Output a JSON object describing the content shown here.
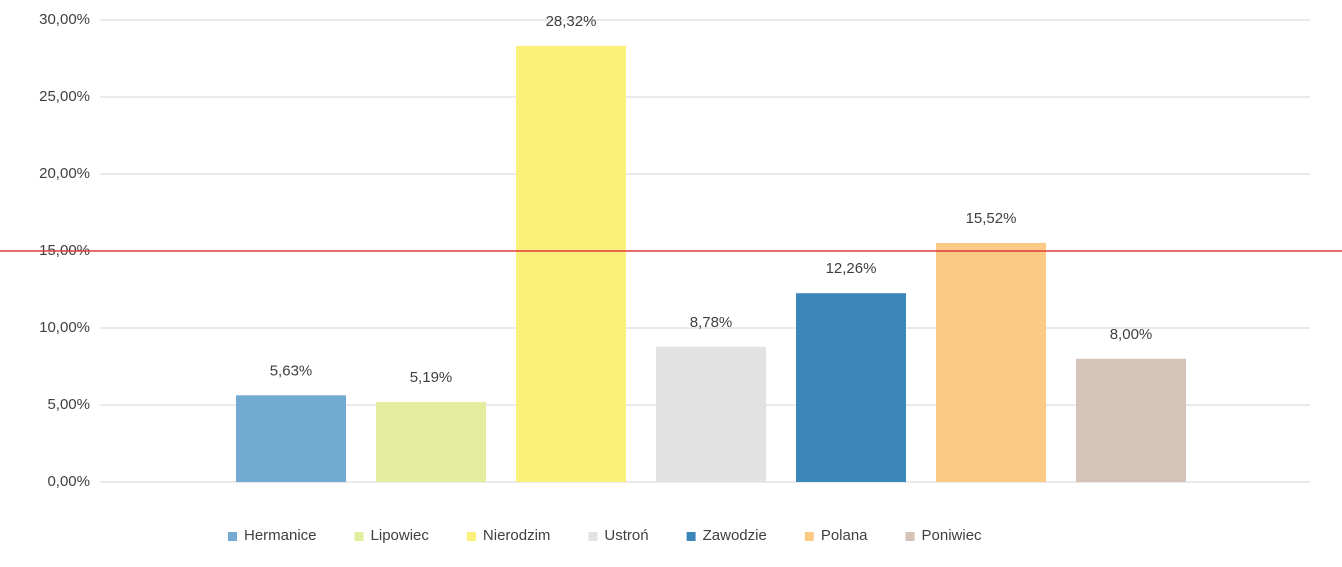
{
  "chart_data": {
    "type": "bar",
    "categories": [
      "Hermanice",
      "Lipowiec",
      "Nierodzim",
      "Ustroń",
      "Zawodzie",
      "Polana",
      "Poniwiec"
    ],
    "values": [
      5.63,
      5.19,
      28.32,
      8.78,
      12.26,
      15.52,
      8.0
    ],
    "value_labels": [
      "5,63%",
      "5,19%",
      "28,32%",
      "8,78%",
      "12,26%",
      "15,52%",
      "8,00%"
    ],
    "colors": [
      "#72aad2",
      "#e4ed9e",
      "#fbf07a",
      "#e2e2e2",
      "#3c87b9",
      "#fbcb86",
      "#d6c3b7"
    ],
    "ylim": [
      0,
      30
    ],
    "yticks": [
      {
        "value": 0,
        "label": "0,00%"
      },
      {
        "value": 5,
        "label": "5,00%"
      },
      {
        "value": 10,
        "label": "10,00%"
      },
      {
        "value": 15,
        "label": "15,00%"
      },
      {
        "value": 20,
        "label": "20,00%"
      },
      {
        "value": 25,
        "label": "25,00%"
      },
      {
        "value": 30,
        "label": "30,00%"
      }
    ],
    "grid": true,
    "reference_line": {
      "value": 15,
      "color": "#e23a3a"
    },
    "legend": "bottom"
  }
}
